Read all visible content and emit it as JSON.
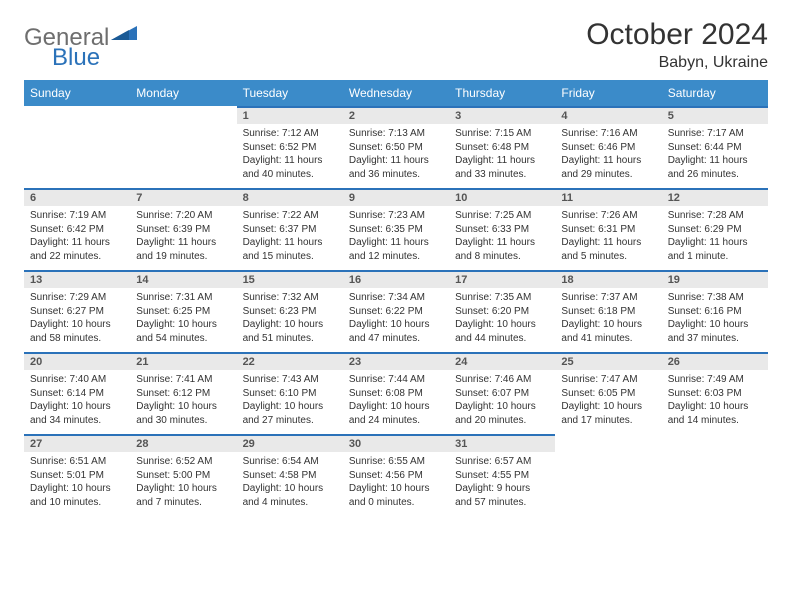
{
  "logo": {
    "general": "General",
    "blue": "Blue"
  },
  "title": "October 2024",
  "location": "Babyn, Ukraine",
  "daysOfWeek": [
    "Sunday",
    "Monday",
    "Tuesday",
    "Wednesday",
    "Thursday",
    "Friday",
    "Saturday"
  ],
  "colors": {
    "headerBlue": "#3b8bc9",
    "borderBlue": "#2b72b9",
    "dayNumBg": "#e9e9e9",
    "logoGray": "#6e6e6e"
  },
  "firstDayOffset": 2,
  "cells": [
    {
      "n": "1",
      "sr": "7:12 AM",
      "ss": "6:52 PM",
      "dl": "11 hours and 40 minutes."
    },
    {
      "n": "2",
      "sr": "7:13 AM",
      "ss": "6:50 PM",
      "dl": "11 hours and 36 minutes."
    },
    {
      "n": "3",
      "sr": "7:15 AM",
      "ss": "6:48 PM",
      "dl": "11 hours and 33 minutes."
    },
    {
      "n": "4",
      "sr": "7:16 AM",
      "ss": "6:46 PM",
      "dl": "11 hours and 29 minutes."
    },
    {
      "n": "5",
      "sr": "7:17 AM",
      "ss": "6:44 PM",
      "dl": "11 hours and 26 minutes."
    },
    {
      "n": "6",
      "sr": "7:19 AM",
      "ss": "6:42 PM",
      "dl": "11 hours and 22 minutes."
    },
    {
      "n": "7",
      "sr": "7:20 AM",
      "ss": "6:39 PM",
      "dl": "11 hours and 19 minutes."
    },
    {
      "n": "8",
      "sr": "7:22 AM",
      "ss": "6:37 PM",
      "dl": "11 hours and 15 minutes."
    },
    {
      "n": "9",
      "sr": "7:23 AM",
      "ss": "6:35 PM",
      "dl": "11 hours and 12 minutes."
    },
    {
      "n": "10",
      "sr": "7:25 AM",
      "ss": "6:33 PM",
      "dl": "11 hours and 8 minutes."
    },
    {
      "n": "11",
      "sr": "7:26 AM",
      "ss": "6:31 PM",
      "dl": "11 hours and 5 minutes."
    },
    {
      "n": "12",
      "sr": "7:28 AM",
      "ss": "6:29 PM",
      "dl": "11 hours and 1 minute."
    },
    {
      "n": "13",
      "sr": "7:29 AM",
      "ss": "6:27 PM",
      "dl": "10 hours and 58 minutes."
    },
    {
      "n": "14",
      "sr": "7:31 AM",
      "ss": "6:25 PM",
      "dl": "10 hours and 54 minutes."
    },
    {
      "n": "15",
      "sr": "7:32 AM",
      "ss": "6:23 PM",
      "dl": "10 hours and 51 minutes."
    },
    {
      "n": "16",
      "sr": "7:34 AM",
      "ss": "6:22 PM",
      "dl": "10 hours and 47 minutes."
    },
    {
      "n": "17",
      "sr": "7:35 AM",
      "ss": "6:20 PM",
      "dl": "10 hours and 44 minutes."
    },
    {
      "n": "18",
      "sr": "7:37 AM",
      "ss": "6:18 PM",
      "dl": "10 hours and 41 minutes."
    },
    {
      "n": "19",
      "sr": "7:38 AM",
      "ss": "6:16 PM",
      "dl": "10 hours and 37 minutes."
    },
    {
      "n": "20",
      "sr": "7:40 AM",
      "ss": "6:14 PM",
      "dl": "10 hours and 34 minutes."
    },
    {
      "n": "21",
      "sr": "7:41 AM",
      "ss": "6:12 PM",
      "dl": "10 hours and 30 minutes."
    },
    {
      "n": "22",
      "sr": "7:43 AM",
      "ss": "6:10 PM",
      "dl": "10 hours and 27 minutes."
    },
    {
      "n": "23",
      "sr": "7:44 AM",
      "ss": "6:08 PM",
      "dl": "10 hours and 24 minutes."
    },
    {
      "n": "24",
      "sr": "7:46 AM",
      "ss": "6:07 PM",
      "dl": "10 hours and 20 minutes."
    },
    {
      "n": "25",
      "sr": "7:47 AM",
      "ss": "6:05 PM",
      "dl": "10 hours and 17 minutes."
    },
    {
      "n": "26",
      "sr": "7:49 AM",
      "ss": "6:03 PM",
      "dl": "10 hours and 14 minutes."
    },
    {
      "n": "27",
      "sr": "6:51 AM",
      "ss": "5:01 PM",
      "dl": "10 hours and 10 minutes."
    },
    {
      "n": "28",
      "sr": "6:52 AM",
      "ss": "5:00 PM",
      "dl": "10 hours and 7 minutes."
    },
    {
      "n": "29",
      "sr": "6:54 AM",
      "ss": "4:58 PM",
      "dl": "10 hours and 4 minutes."
    },
    {
      "n": "30",
      "sr": "6:55 AM",
      "ss": "4:56 PM",
      "dl": "10 hours and 0 minutes."
    },
    {
      "n": "31",
      "sr": "6:57 AM",
      "ss": "4:55 PM",
      "dl": "9 hours and 57 minutes."
    }
  ],
  "labels": {
    "sunrise": "Sunrise:",
    "sunset": "Sunset:",
    "daylight": "Daylight:"
  }
}
